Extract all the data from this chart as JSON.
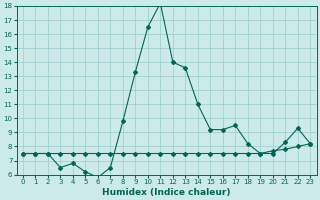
{
  "xlabel": "Humidex (Indice chaleur)",
  "background_color": "#cceae7",
  "line_color": "#006655",
  "x": [
    0,
    1,
    2,
    3,
    4,
    5,
    6,
    7,
    8,
    9,
    10,
    11,
    12,
    13,
    14,
    15,
    16,
    17,
    18,
    19,
    20,
    21,
    22,
    23
  ],
  "y_main": [
    7.5,
    7.5,
    7.5,
    6.5,
    6.8,
    6.2,
    5.8,
    6.5,
    9.8,
    13.3,
    16.5,
    18.2,
    14.0,
    13.6,
    11.0,
    9.2,
    9.2,
    9.5,
    8.2,
    7.5,
    7.5,
    8.3,
    9.3,
    8.2
  ],
  "y_flat": [
    7.5,
    7.5,
    7.5,
    7.5,
    7.5,
    7.5,
    7.5,
    7.5,
    7.5,
    7.5,
    7.5,
    7.5,
    7.5,
    7.5,
    7.5,
    7.5,
    7.5,
    7.5,
    7.5,
    7.5,
    7.7,
    7.8,
    8.0,
    8.2
  ],
  "ylim": [
    6,
    18
  ],
  "xlim_min": -0.5,
  "xlim_max": 23.5,
  "yticks": [
    6,
    7,
    8,
    9,
    10,
    11,
    12,
    13,
    14,
    15,
    16,
    17,
    18
  ],
  "xtick_labels": [
    "0",
    "1",
    "2",
    "3",
    "4",
    "5",
    "6",
    "7",
    "8",
    "9",
    "10",
    "11",
    "12",
    "13",
    "14",
    "15",
    "16",
    "17",
    "18",
    "19",
    "20",
    "21",
    "22",
    "23"
  ],
  "grid_color": "#99cccc",
  "marker": "D",
  "markersize": 2,
  "linewidth": 0.8,
  "tick_fontsize": 5,
  "xlabel_fontsize": 6.5
}
